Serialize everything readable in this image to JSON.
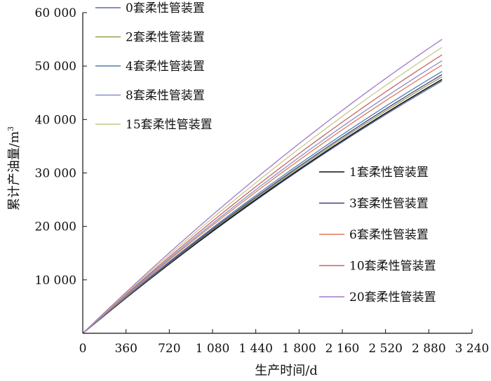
{
  "chart_data": {
    "type": "line",
    "xlabel": "生产时间/d",
    "ylabel_main": "累计产油量/m",
    "ylabel_sup": "3",
    "xlim": [
      0,
      3240
    ],
    "ylim": [
      0,
      60000
    ],
    "x_ticks": [
      0,
      360,
      720,
      1080,
      1440,
      1800,
      2160,
      2520,
      2880,
      3240
    ],
    "x_tick_labels": [
      "0",
      "360",
      "720",
      "1 080",
      "1 440",
      "1 800",
      "2 160",
      "2 520",
      "2 880",
      "3 240"
    ],
    "y_ticks": [
      10000,
      20000,
      30000,
      40000,
      50000,
      60000
    ],
    "y_tick_labels": [
      "10 000",
      "20 000",
      "30 000",
      "40 000",
      "50 000",
      "60 000"
    ],
    "grid": false,
    "legend_groups": [
      {
        "placement": "top-left",
        "series_indices": [
          0,
          2,
          4,
          6,
          8
        ]
      },
      {
        "placement": "center-right",
        "series_indices": [
          1,
          3,
          5,
          7,
          9
        ]
      }
    ],
    "x_end": 2990,
    "curvature": 0.18,
    "series": [
      {
        "name": "0套柔性管装置",
        "color": "#5b6aa8",
        "end_value": 47200
      },
      {
        "name": "1套柔性管装置",
        "color": "#111111",
        "end_value": 47500
      },
      {
        "name": "2套柔性管装置",
        "color": "#8ea050",
        "end_value": 48000
      },
      {
        "name": "3套柔性管装置",
        "color": "#4a3a7e",
        "end_value": 48400
      },
      {
        "name": "4套柔性管装置",
        "color": "#4a7fb0",
        "end_value": 49000
      },
      {
        "name": "6套柔性管装置",
        "color": "#e07a58",
        "end_value": 50200
      },
      {
        "name": "8套柔性管装置",
        "color": "#8890c8",
        "end_value": 51000
      },
      {
        "name": "10套柔性管装置",
        "color": "#c26464",
        "end_value": 52100
      },
      {
        "name": "15套柔性管装置",
        "color": "#c6c98a",
        "end_value": 53500
      },
      {
        "name": "20套柔性管装置",
        "color": "#a07ac8",
        "end_value": 55000
      }
    ]
  }
}
